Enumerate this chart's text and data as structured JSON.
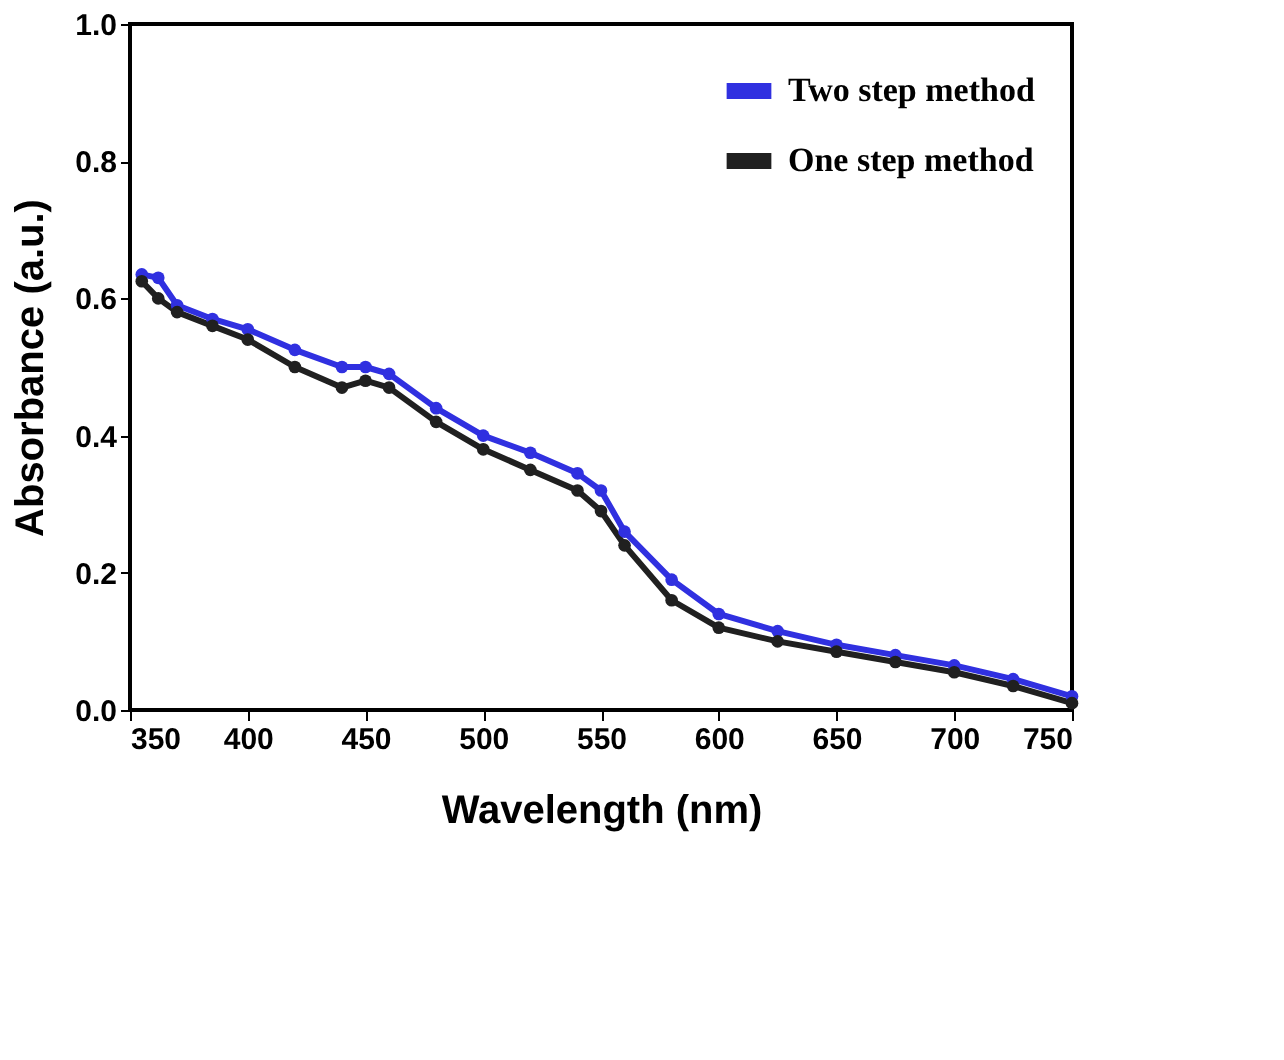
{
  "chart_data": {
    "type": "line",
    "xlabel": "Wavelength (nm)",
    "ylabel": "Absorbance (a.u.)",
    "xlim": [
      350,
      750
    ],
    "xticks": [
      350,
      400,
      450,
      500,
      550,
      600,
      650,
      700,
      750
    ],
    "ylim": [
      0,
      1
    ],
    "yticks": [
      {
        "value": 0,
        "label": "0.0"
      },
      {
        "value": 0.2,
        "label": "0.2"
      },
      {
        "value": 0.4,
        "label": "0.4"
      },
      {
        "value": 0.6,
        "label": "0.6"
      },
      {
        "value": 0.8,
        "label": "0.8"
      },
      {
        "value": 1,
        "label": "1.0"
      }
    ],
    "x": [
      355,
      362,
      370,
      385,
      400,
      420,
      440,
      450,
      460,
      480,
      500,
      520,
      540,
      550,
      560,
      580,
      600,
      625,
      650,
      675,
      700,
      725,
      750
    ],
    "series": [
      {
        "name": "Two step method",
        "color": "#3030e0",
        "values": [
          0.635,
          0.63,
          0.59,
          0.57,
          0.555,
          0.525,
          0.5,
          0.5,
          0.49,
          0.44,
          0.4,
          0.375,
          0.345,
          0.32,
          0.26,
          0.19,
          0.14,
          0.115,
          0.095,
          0.08,
          0.065,
          0.045,
          0.02
        ]
      },
      {
        "name": "One step method",
        "color": "#202020",
        "values": [
          0.625,
          0.6,
          0.58,
          0.56,
          0.54,
          0.5,
          0.47,
          0.48,
          0.47,
          0.42,
          0.38,
          0.35,
          0.32,
          0.29,
          0.24,
          0.16,
          0.12,
          0.1,
          0.085,
          0.07,
          0.055,
          0.035,
          0.01
        ]
      }
    ],
    "legend": "top right",
    "marker": "circle",
    "line_style": "solid",
    "grid": false
  }
}
